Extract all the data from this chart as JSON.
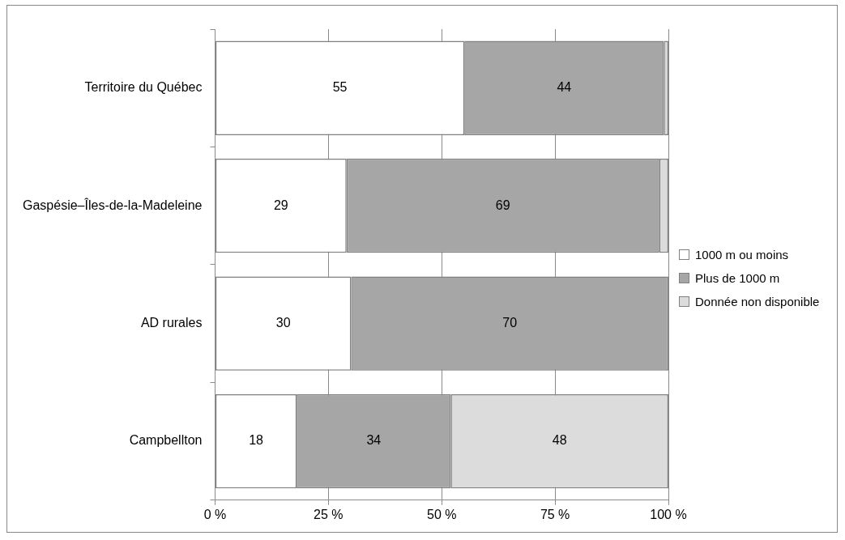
{
  "chart_data": {
    "type": "bar",
    "orientation": "horizontal",
    "stacked": true,
    "categories": [
      "Territoire du Québec",
      "Gaspésie–Îles-de-la-Madeleine",
      "AD rurales",
      "Campbellton"
    ],
    "series": [
      {
        "name": "1000 m ou moins",
        "color": "#ffffff",
        "values": [
          55,
          29,
          30,
          18
        ],
        "value_labels": [
          "55",
          "29",
          "30",
          "18"
        ]
      },
      {
        "name": "Plus de 1000 m",
        "color": "#a6a6a6",
        "values": [
          44,
          69,
          70,
          34
        ],
        "value_labels": [
          "44",
          "69",
          "70",
          "34"
        ]
      },
      {
        "name": "Donnée non disponible",
        "color": "#dcdcdc",
        "values": [
          1,
          2,
          0,
          48
        ],
        "value_labels": [
          null,
          null,
          null,
          "48"
        ]
      }
    ],
    "xlim": [
      0,
      100
    ],
    "xticks": [
      {
        "value": 0,
        "label": "0 %"
      },
      {
        "value": 25,
        "label": "25 %"
      },
      {
        "value": 50,
        "label": "50 %"
      },
      {
        "value": 75,
        "label": "75 %"
      },
      {
        "value": 100,
        "label": "100 %"
      }
    ],
    "grid": "x",
    "legend": "right"
  }
}
